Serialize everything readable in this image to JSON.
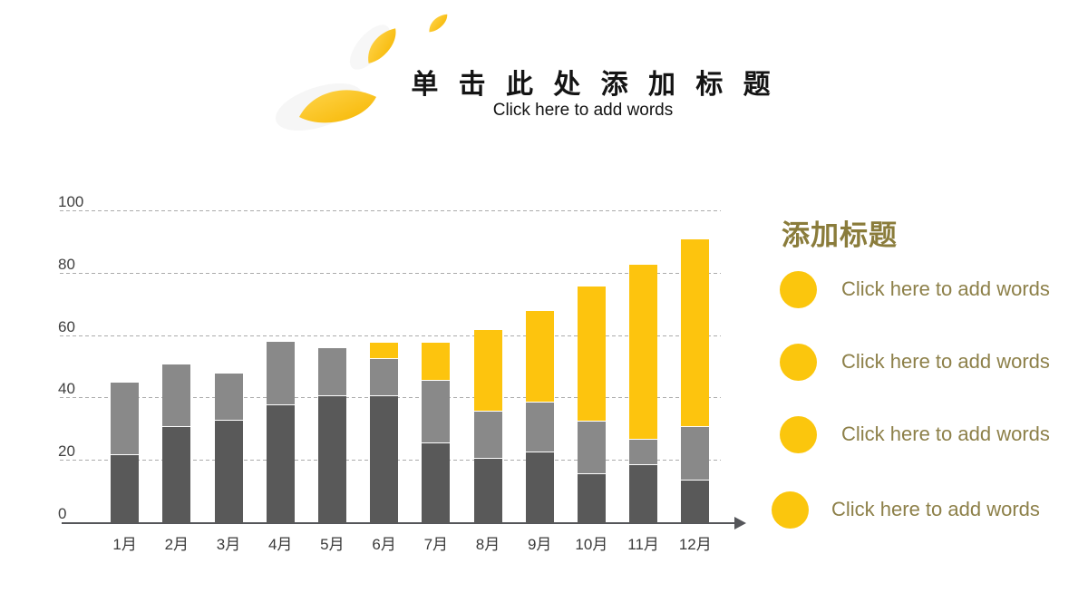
{
  "slide": {
    "title": "单 击 此 处 添 加 标 题",
    "subtitle": "Click here to add words"
  },
  "chart_data": {
    "type": "bar",
    "stacked": true,
    "title": "",
    "xlabel": "",
    "ylabel": "",
    "ylim": [
      0,
      100
    ],
    "yticks": [
      0,
      20,
      40,
      60,
      80,
      100
    ],
    "grid": "dashed-horizontal",
    "legend": "none",
    "categories": [
      "1月",
      "2月",
      "3月",
      "4月",
      "5月",
      "6月",
      "7月",
      "8月",
      "9月",
      "10月",
      "11月",
      "12月"
    ],
    "series": [
      {
        "name": "dark-gray-bottom",
        "color": "#595959",
        "values": [
          22,
          31,
          33,
          38,
          41,
          41,
          26,
          21,
          23,
          16,
          19,
          14
        ]
      },
      {
        "name": "mid-gray-middle",
        "color": "#898989",
        "values": [
          23,
          20,
          15,
          20,
          15,
          12,
          20,
          15,
          16,
          17,
          8,
          17
        ]
      },
      {
        "name": "yellow-top",
        "color": "#fdc40e",
        "values": [
          0,
          0,
          0,
          0,
          0,
          5,
          12,
          26,
          29,
          43,
          56,
          60
        ]
      }
    ]
  },
  "panel": {
    "heading": "添加标题",
    "accent_color": "#fbc60d",
    "text_color": "#8d8049",
    "items": [
      {
        "label": "Click here to add words"
      },
      {
        "label": "Click here to add words"
      },
      {
        "label": "Click here to add words"
      },
      {
        "label": "Click here to add words"
      }
    ]
  },
  "colors": {
    "leaf_yellow": "#f9ba00",
    "leaf_yellow_light": "#ffd54d",
    "axis": "#55565a",
    "gridline": "#ababab",
    "heading_olive": "#8a7c3b"
  }
}
